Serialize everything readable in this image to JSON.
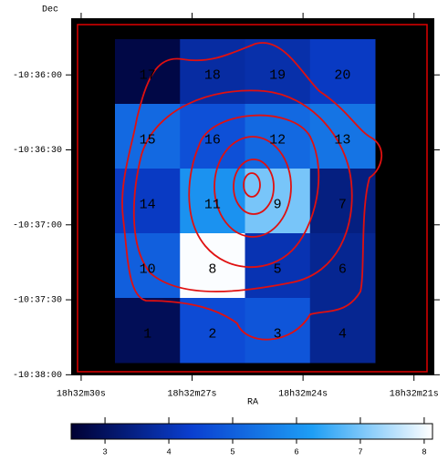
{
  "chart_data": {
    "type": "heatmap",
    "x_label": "RA",
    "y_label": "Dec",
    "xlim": [
      30.27,
      20.45
    ],
    "xticks": [
      {
        "value": 30,
        "label": "18h32m30s"
      },
      {
        "value": 27,
        "label": "18h32m27s"
      },
      {
        "value": 24,
        "label": "18h32m24s"
      },
      {
        "value": 21,
        "label": "18h32m21s"
      }
    ],
    "ylim": [
      -10.6334,
      -10.5937
    ],
    "yticks": [
      {
        "value": -10.6,
        "label": "-10:36:00"
      },
      {
        "value": -10.608333,
        "label": "-10:36:30"
      },
      {
        "value": -10.616667,
        "label": "-10:37:00"
      },
      {
        "value": -10.625,
        "label": "-10:37:30"
      },
      {
        "value": -10.633333,
        "label": "-10:38:00"
      }
    ],
    "rows": [
      [
        {
          "label": "17",
          "value": 2.7,
          "label_color": "#d8c850"
        },
        {
          "label": "18",
          "value": 3.8,
          "label_color": "#d8c850"
        },
        {
          "label": "19",
          "value": 3.9,
          "label_color": "#d8c850"
        },
        {
          "label": "20",
          "value": 4.2,
          "label_color": "#d8c850"
        }
      ],
      [
        {
          "label": "15",
          "value": 5.2,
          "label_color": "#d8c850"
        },
        {
          "label": "16",
          "value": 4.7,
          "label_color": "#d8c850"
        },
        {
          "label": "12",
          "value": 5.2,
          "label_color": "#d8c850"
        },
        {
          "label": "13",
          "value": 5.4,
          "label_color": "#d8c850"
        }
      ],
      [
        {
          "label": "14",
          "value": 4.2,
          "label_color": "#d8c850"
        },
        {
          "label": "11",
          "value": 6.0,
          "label_color": "#d8c850"
        },
        {
          "label": "9",
          "value": 7.0,
          "label_color": "#000000"
        },
        {
          "label": "7",
          "value": 3.4,
          "label_color": "#d8c850"
        }
      ],
      [
        {
          "label": "10",
          "value": 5.0,
          "label_color": "#d8c850"
        },
        {
          "label": "8",
          "value": 8.1,
          "label_color": "#000000"
        },
        {
          "label": "5",
          "value": 4.0,
          "label_color": "#d8c850"
        },
        {
          "label": "6",
          "value": 3.6,
          "label_color": "#d8c850"
        }
      ],
      [
        {
          "label": "1",
          "value": 2.9,
          "label_color": "#d8c850"
        },
        {
          "label": "2",
          "value": 4.6,
          "label_color": "#d8c850"
        },
        {
          "label": "3",
          "value": 4.8,
          "label_color": "#d8c850"
        },
        {
          "label": "4",
          "value": 3.6,
          "label_color": "#d8c850"
        }
      ]
    ],
    "colormap": [
      "#000033",
      "#0a3fd0",
      "#1e9ef5",
      "#ffffff"
    ],
    "colorbar": {
      "lim": [
        2.47,
        8.13
      ],
      "ticks": [
        3,
        4,
        5,
        6,
        7,
        8
      ]
    },
    "frame_color": "#000000",
    "box_color": "#e00000"
  }
}
